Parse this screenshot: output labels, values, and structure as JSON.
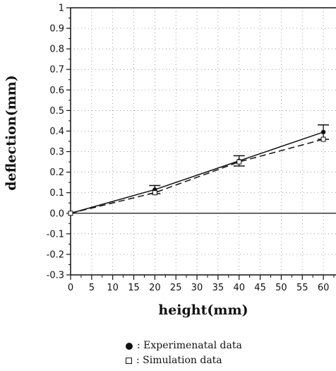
{
  "chart_data": {
    "type": "line",
    "xlabel": "height(mm)",
    "ylabel": "deflection(mm)",
    "xlim": [
      0,
      63
    ],
    "ylim": [
      -0.3,
      1.0
    ],
    "x_ticks": [
      0,
      5,
      10,
      15,
      20,
      25,
      30,
      35,
      40,
      45,
      50,
      55,
      60
    ],
    "y_ticks": [
      -0.3,
      -0.2,
      -0.1,
      0.0,
      0.1,
      0.2,
      0.3,
      0.4,
      0.5,
      0.6,
      0.7,
      0.8,
      0.9,
      1
    ],
    "y_tick_labels": [
      "-0.3",
      "-0.2",
      "-0.1",
      "0.0",
      "0.1",
      "0.2",
      "0.3",
      "0.4",
      "0.5",
      "0.6",
      "0.7",
      "0.8",
      "0.9",
      "1"
    ],
    "grid": true,
    "series": [
      {
        "name": "Experimenatal data",
        "marker": "filled-circle",
        "line": "solid",
        "x": [
          0,
          20,
          40,
          60
        ],
        "y": [
          0.0,
          0.115,
          0.255,
          0.395
        ],
        "error": [
          0,
          0.02,
          0.025,
          0.035
        ]
      },
      {
        "name": "Simulation data",
        "marker": "open-square",
        "line": "dashed",
        "x": [
          0,
          20,
          40,
          60
        ],
        "y": [
          0.0,
          0.1,
          0.25,
          0.36
        ],
        "error": [
          0,
          0,
          0,
          0
        ]
      }
    ]
  },
  "legend": {
    "experimental_label": ": Experimenatal data",
    "simulation_label": ": Simulation data"
  }
}
